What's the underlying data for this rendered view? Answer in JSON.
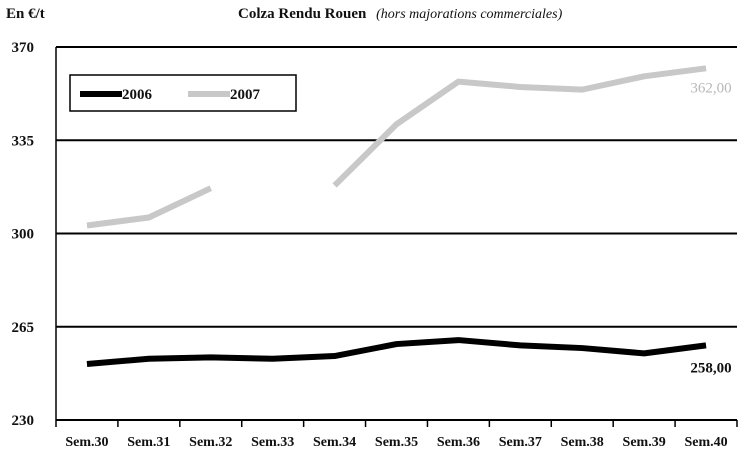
{
  "chart_data": {
    "type": "line",
    "title": "Colza Rendu Rouen",
    "subtitle": "(hors majorations commerciales)",
    "ylabel": "En €/t",
    "xlabel": "",
    "categories": [
      "Sem.30",
      "Sem.31",
      "Sem.32",
      "Sem.33",
      "Sem.34",
      "Sem.35",
      "Sem.36",
      "Sem.37",
      "Sem.38",
      "Sem.39",
      "Sem.40"
    ],
    "ylim": [
      230,
      370
    ],
    "yticks": [
      230,
      265,
      300,
      335,
      370
    ],
    "ytick_labels": [
      "230",
      "265",
      "300",
      "335",
      "370"
    ],
    "grid": "horizontal",
    "legend": "top-left",
    "series": [
      {
        "name": "2006",
        "color": "#000000",
        "values": [
          251,
          253,
          253.5,
          253,
          254,
          258.5,
          260,
          258,
          257,
          255,
          258
        ],
        "end_label": "258,00"
      },
      {
        "name": "2007",
        "color": "#c8c8c8",
        "values": [
          303,
          306,
          317,
          null,
          318,
          341,
          357,
          355,
          354,
          359,
          362
        ],
        "end_label": "362,00"
      }
    ]
  }
}
